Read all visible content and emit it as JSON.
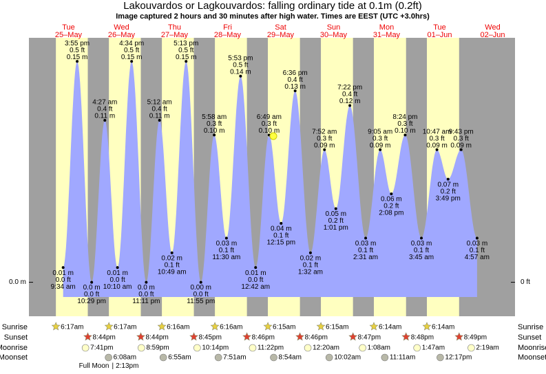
{
  "chart_data": {
    "type": "tide",
    "title": "Lakouvardos or Lagkouvardos: falling  ordinary tide at 0.1m (0.2ft)",
    "subtitle": "Image captured 2 hours and 30 minutes after high water. Times are EEST (UTC +3.0hrs)",
    "ylim": [
      -0.01,
      0.166
    ],
    "yticks": [
      {
        "value": 0,
        "label": "0.0 m"
      }
    ],
    "y2ticks": [
      {
        "value": 0,
        "label": "0 ft"
      }
    ],
    "color": "#a0a8ff",
    "row_labels": {
      "sunrise": "Sunrise",
      "sunset": "Sunset",
      "moonrise": "Moonrise",
      "moonset": "Moonset"
    },
    "moon_phase": {
      "name": "Full Moon",
      "time": "2:13pm",
      "day": 1
    },
    "days": [
      {
        "weekday": "Tue",
        "date": "25–May",
        "sunrise": "6:17am",
        "sunset": "8:44pm",
        "moonrise": "7:41pm",
        "moonset": null,
        "tides": [
          {
            "time": "9:34 am",
            "value": 0.01,
            "value_label": "0.01 m",
            "ft": "0.0 ft"
          },
          {
            "time": "3:55 pm",
            "value": 0.15,
            "value_label": "0.15 m",
            "ft": "0.5 ft"
          },
          {
            "time": "10:29 pm",
            "value": 0.0,
            "value_label": "0.0 m",
            "ft": "0.0 ft"
          }
        ]
      },
      {
        "weekday": "Wed",
        "date": "26–May",
        "sunrise": "6:17am",
        "sunset": "8:44pm",
        "moonrise": "8:59pm",
        "moonset": "6:08am",
        "tides": [
          {
            "time": "4:27 am",
            "value": 0.11,
            "value_label": "0.11 m",
            "ft": "0.4 ft"
          },
          {
            "time": "10:10 am",
            "value": 0.01,
            "value_label": "0.01 m",
            "ft": "0.0 ft"
          },
          {
            "time": "4:34 pm",
            "value": 0.15,
            "value_label": "0.15 m",
            "ft": "0.5 ft"
          },
          {
            "time": "11:11 pm",
            "value": 0.0,
            "value_label": "0.0 m",
            "ft": "0.0 ft"
          }
        ]
      },
      {
        "weekday": "Thu",
        "date": "27–May",
        "sunrise": "6:16am",
        "sunset": "8:45pm",
        "moonrise": "10:14pm",
        "moonset": "6:55am",
        "tides": [
          {
            "time": "5:12 am",
            "value": 0.11,
            "value_label": "0.11 m",
            "ft": "0.4 ft"
          },
          {
            "time": "10:49 am",
            "value": 0.02,
            "value_label": "0.02 m",
            "ft": "0.1 ft"
          },
          {
            "time": "5:13 pm",
            "value": 0.15,
            "value_label": "0.15 m",
            "ft": "0.5 ft"
          },
          {
            "time": "11:55 pm",
            "value": 0.0,
            "value_label": "0.00 m",
            "ft": "0.0 ft"
          }
        ]
      },
      {
        "weekday": "Fri",
        "date": "28–May",
        "sunrise": "6:16am",
        "sunset": "8:46pm",
        "moonrise": "11:22pm",
        "moonset": "7:51am",
        "tides": [
          {
            "time": "5:58 am",
            "value": 0.1,
            "value_label": "0.10 m",
            "ft": "0.3 ft"
          },
          {
            "time": "11:30 am",
            "value": 0.03,
            "value_label": "0.03 m",
            "ft": "0.1 ft"
          },
          {
            "time": "5:53 pm",
            "value": 0.14,
            "value_label": "0.14 m",
            "ft": "0.5 ft"
          }
        ]
      },
      {
        "weekday": "Sat",
        "date": "29–May",
        "sunrise": "6:15am",
        "sunset": "8:46pm",
        "moonrise": null,
        "moonset": "8:54am",
        "tides": [
          {
            "time": "12:42 am",
            "value": 0.01,
            "value_label": "0.01 m",
            "ft": "0.0 ft"
          },
          {
            "time": "6:49 am",
            "value": 0.1,
            "value_label": "0.10 m",
            "ft": "0.3 ft"
          },
          {
            "time": "12:15 pm",
            "value": 0.04,
            "value_label": "0.04 m",
            "ft": "0.1 ft"
          },
          {
            "time": "6:36 pm",
            "value": 0.13,
            "value_label": "0.13 m",
            "ft": "0.4 ft"
          }
        ]
      },
      {
        "weekday": "Sun",
        "date": "30–May",
        "sunrise": "6:15am",
        "sunset": "8:47pm",
        "moonrise": "12:20am",
        "moonset": "10:02am",
        "tides": [
          {
            "time": "1:32 am",
            "value": 0.02,
            "value_label": "0.02 m",
            "ft": "0.1 ft"
          },
          {
            "time": "7:52 am",
            "value": 0.09,
            "value_label": "0.09 m",
            "ft": "0.3 ft"
          },
          {
            "time": "1:01 pm",
            "value": 0.05,
            "value_label": "0.05 m",
            "ft": "0.2 ft"
          },
          {
            "time": "7:22 pm",
            "value": 0.12,
            "value_label": "0.12 m",
            "ft": "0.4 ft"
          }
        ]
      },
      {
        "weekday": "Mon",
        "date": "31–May",
        "sunrise": "6:14am",
        "sunset": "8:48pm",
        "moonrise": "1:08am",
        "moonset": "11:11am",
        "tides": [
          {
            "time": "2:31 am",
            "value": 0.03,
            "value_label": "0.03 m",
            "ft": "0.1 ft"
          },
          {
            "time": "9:05 am",
            "value": 0.09,
            "value_label": "0.09 m",
            "ft": "0.3 ft"
          },
          {
            "time": "2:08 pm",
            "value": 0.06,
            "value_label": "0.06 m",
            "ft": "0.2 ft"
          },
          {
            "time": "8:24 pm",
            "value": 0.1,
            "value_label": "0.10 m",
            "ft": "0.3 ft"
          }
        ]
      },
      {
        "weekday": "Tue",
        "date": "01–Jun",
        "sunrise": "6:14am",
        "sunset": "8:49pm",
        "moonrise": "1:47am",
        "moonset": "12:17pm",
        "tides": [
          {
            "time": "3:45 am",
            "value": 0.03,
            "value_label": "0.03 m",
            "ft": "0.1 ft"
          },
          {
            "time": "10:47 am",
            "value": 0.09,
            "value_label": "0.09 m",
            "ft": "0.3 ft"
          },
          {
            "time": "3:49 pm",
            "value": 0.07,
            "value_label": "0.07 m",
            "ft": "0.2 ft"
          },
          {
            "time": "9:43 pm",
            "value": 0.09,
            "value_label": "0.09 m",
            "ft": "0.3 ft"
          }
        ]
      },
      {
        "weekday": "Wed",
        "date": "02–Jun",
        "sunrise": null,
        "sunset": null,
        "moonrise": "2:19am",
        "moonset": null,
        "tides": [
          {
            "time": "4:57 am",
            "value": 0.03,
            "value_label": "0.03 m",
            "ft": "0.1 ft"
          }
        ]
      }
    ]
  }
}
